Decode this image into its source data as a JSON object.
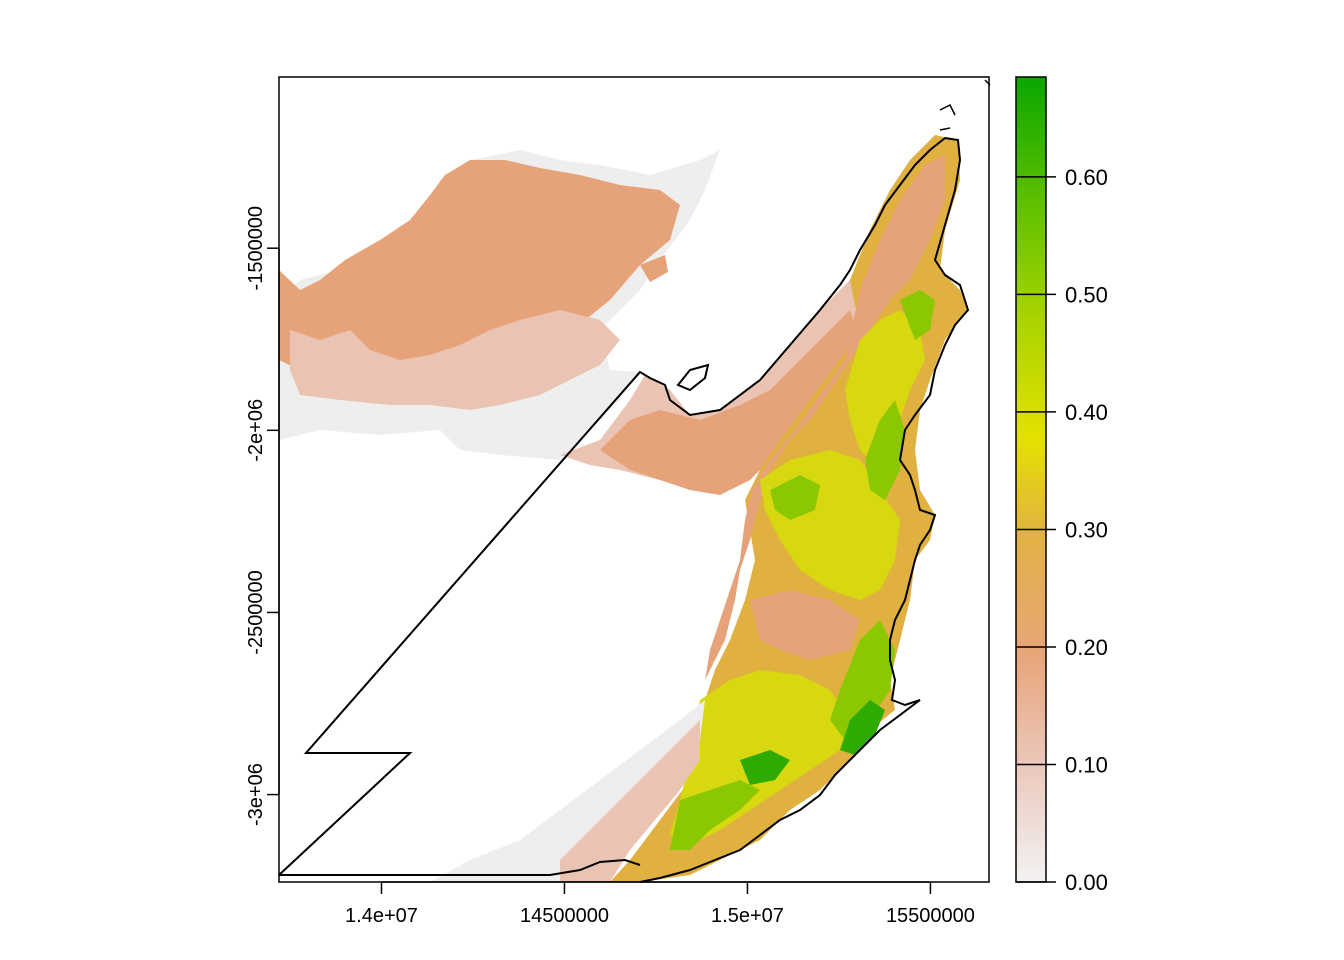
{
  "map": {
    "x_ticks": [
      "1.4e+07",
      "14500000",
      "1.5e+07",
      "15500000"
    ],
    "y_ticks": [
      "-1500000",
      "-2e+06",
      "-2500000",
      "-3e+06"
    ],
    "x_tick_values": [
      14000000,
      14500000,
      15000000,
      15500000
    ],
    "y_tick_values": [
      -1500000,
      -2000000,
      -2500000,
      -3000000
    ],
    "xlim": [
      13720000,
      15660000
    ],
    "ylim": [
      -3240000,
      -1030000
    ]
  },
  "legend": {
    "labels": [
      "0.60",
      "0.50",
      "0.40",
      "0.30",
      "0.20",
      "0.10",
      "0.00"
    ],
    "values": [
      0.6,
      0.5,
      0.4,
      0.3,
      0.2,
      0.1,
      0.0
    ],
    "range": [
      0.0,
      0.685
    ],
    "colors": [
      "#f2f2f2",
      "#ecb176",
      "#e4a43c",
      "#e6e700",
      "#8ccc00",
      "#3ab800",
      "#00a600"
    ]
  },
  "colors": {
    "very_low": "#eeeeee",
    "low": "#ebc3b3",
    "mid_low": "#e6a37a",
    "mid": "#e0b040",
    "mid_high": "#d8d810",
    "high": "#8cc800",
    "very_high": "#2faa00",
    "boundary": "#000000"
  }
}
